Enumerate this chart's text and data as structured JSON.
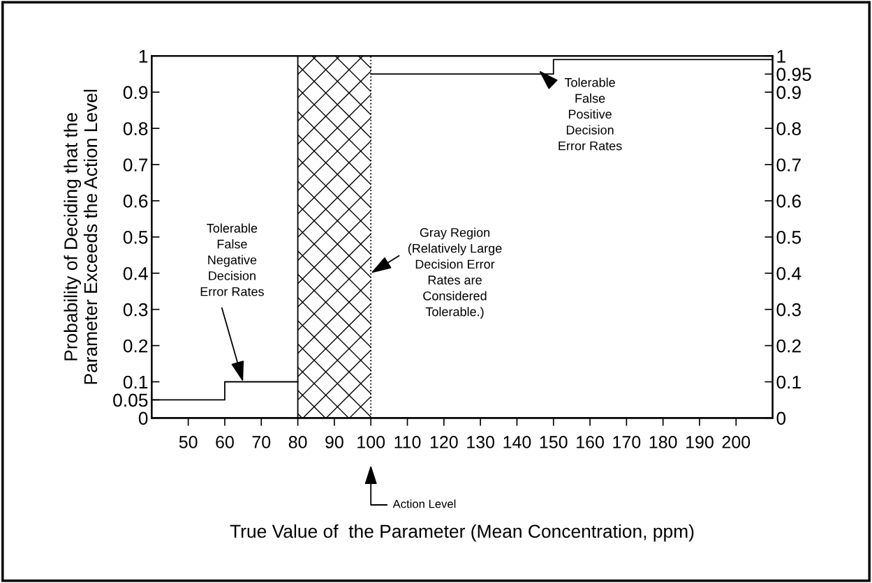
{
  "chart_data": {
    "type": "step",
    "xlabel": "True Value of  the Parameter (Mean Concentration, ppm)",
    "ylabel": "Probability of Deciding that the\nParameter Exceeds the Action Level",
    "series": [
      {
        "color": "#000000",
        "x": [
          40,
          60,
          80
        ],
        "values": [
          0.05,
          0.1,
          0.1
        ]
      },
      {
        "color": "#000000",
        "x": [
          100,
          150,
          210
        ],
        "values": [
          0.95,
          0.99,
          0.99
        ]
      }
    ],
    "xlim": [
      40,
      210
    ],
    "xticks": [
      50,
      60,
      70,
      80,
      90,
      100,
      110,
      120,
      130,
      140,
      150,
      160,
      170,
      180,
      190,
      200
    ],
    "ylim": [
      0,
      1
    ],
    "yticks": [
      0,
      0.05,
      0.1,
      0.2,
      0.3,
      0.4,
      0.5,
      0.6,
      0.7,
      0.8,
      0.9,
      1
    ],
    "y2lim": [
      0,
      1
    ],
    "y2ticks": [
      0,
      0.1,
      0.2,
      0.3,
      0.4,
      0.5,
      0.6,
      0.7,
      0.8,
      0.9,
      0.95,
      1
    ],
    "bands": [
      {
        "axis": "x",
        "from": 80,
        "to": 100,
        "color": "#000000"
      }
    ],
    "ref_lines": [
      {
        "axis": "x",
        "value": 80,
        "line_style": "solid",
        "color": "#000000"
      },
      {
        "axis": "x",
        "value": 100,
        "line_style": "dotted",
        "color": "#000000",
        "label": "Action Level"
      }
    ],
    "annotations": [
      {
        "text": "Tolerable\nFalse\nNegative\nDecision\nError Rates",
        "x": 65,
        "y": 0.1
      },
      {
        "text": "Gray Region\n(Relatively Large\nDecision Error\nRates are\nConsidered\nTolerable.)",
        "x": 100,
        "y": 0.4
      },
      {
        "text": "Tolerable\nFalse\nPositive\nDecision\nError Rates",
        "x": 146,
        "y": 0.96
      }
    ],
    "grid": false,
    "marker": "none",
    "line_style": "solid"
  }
}
